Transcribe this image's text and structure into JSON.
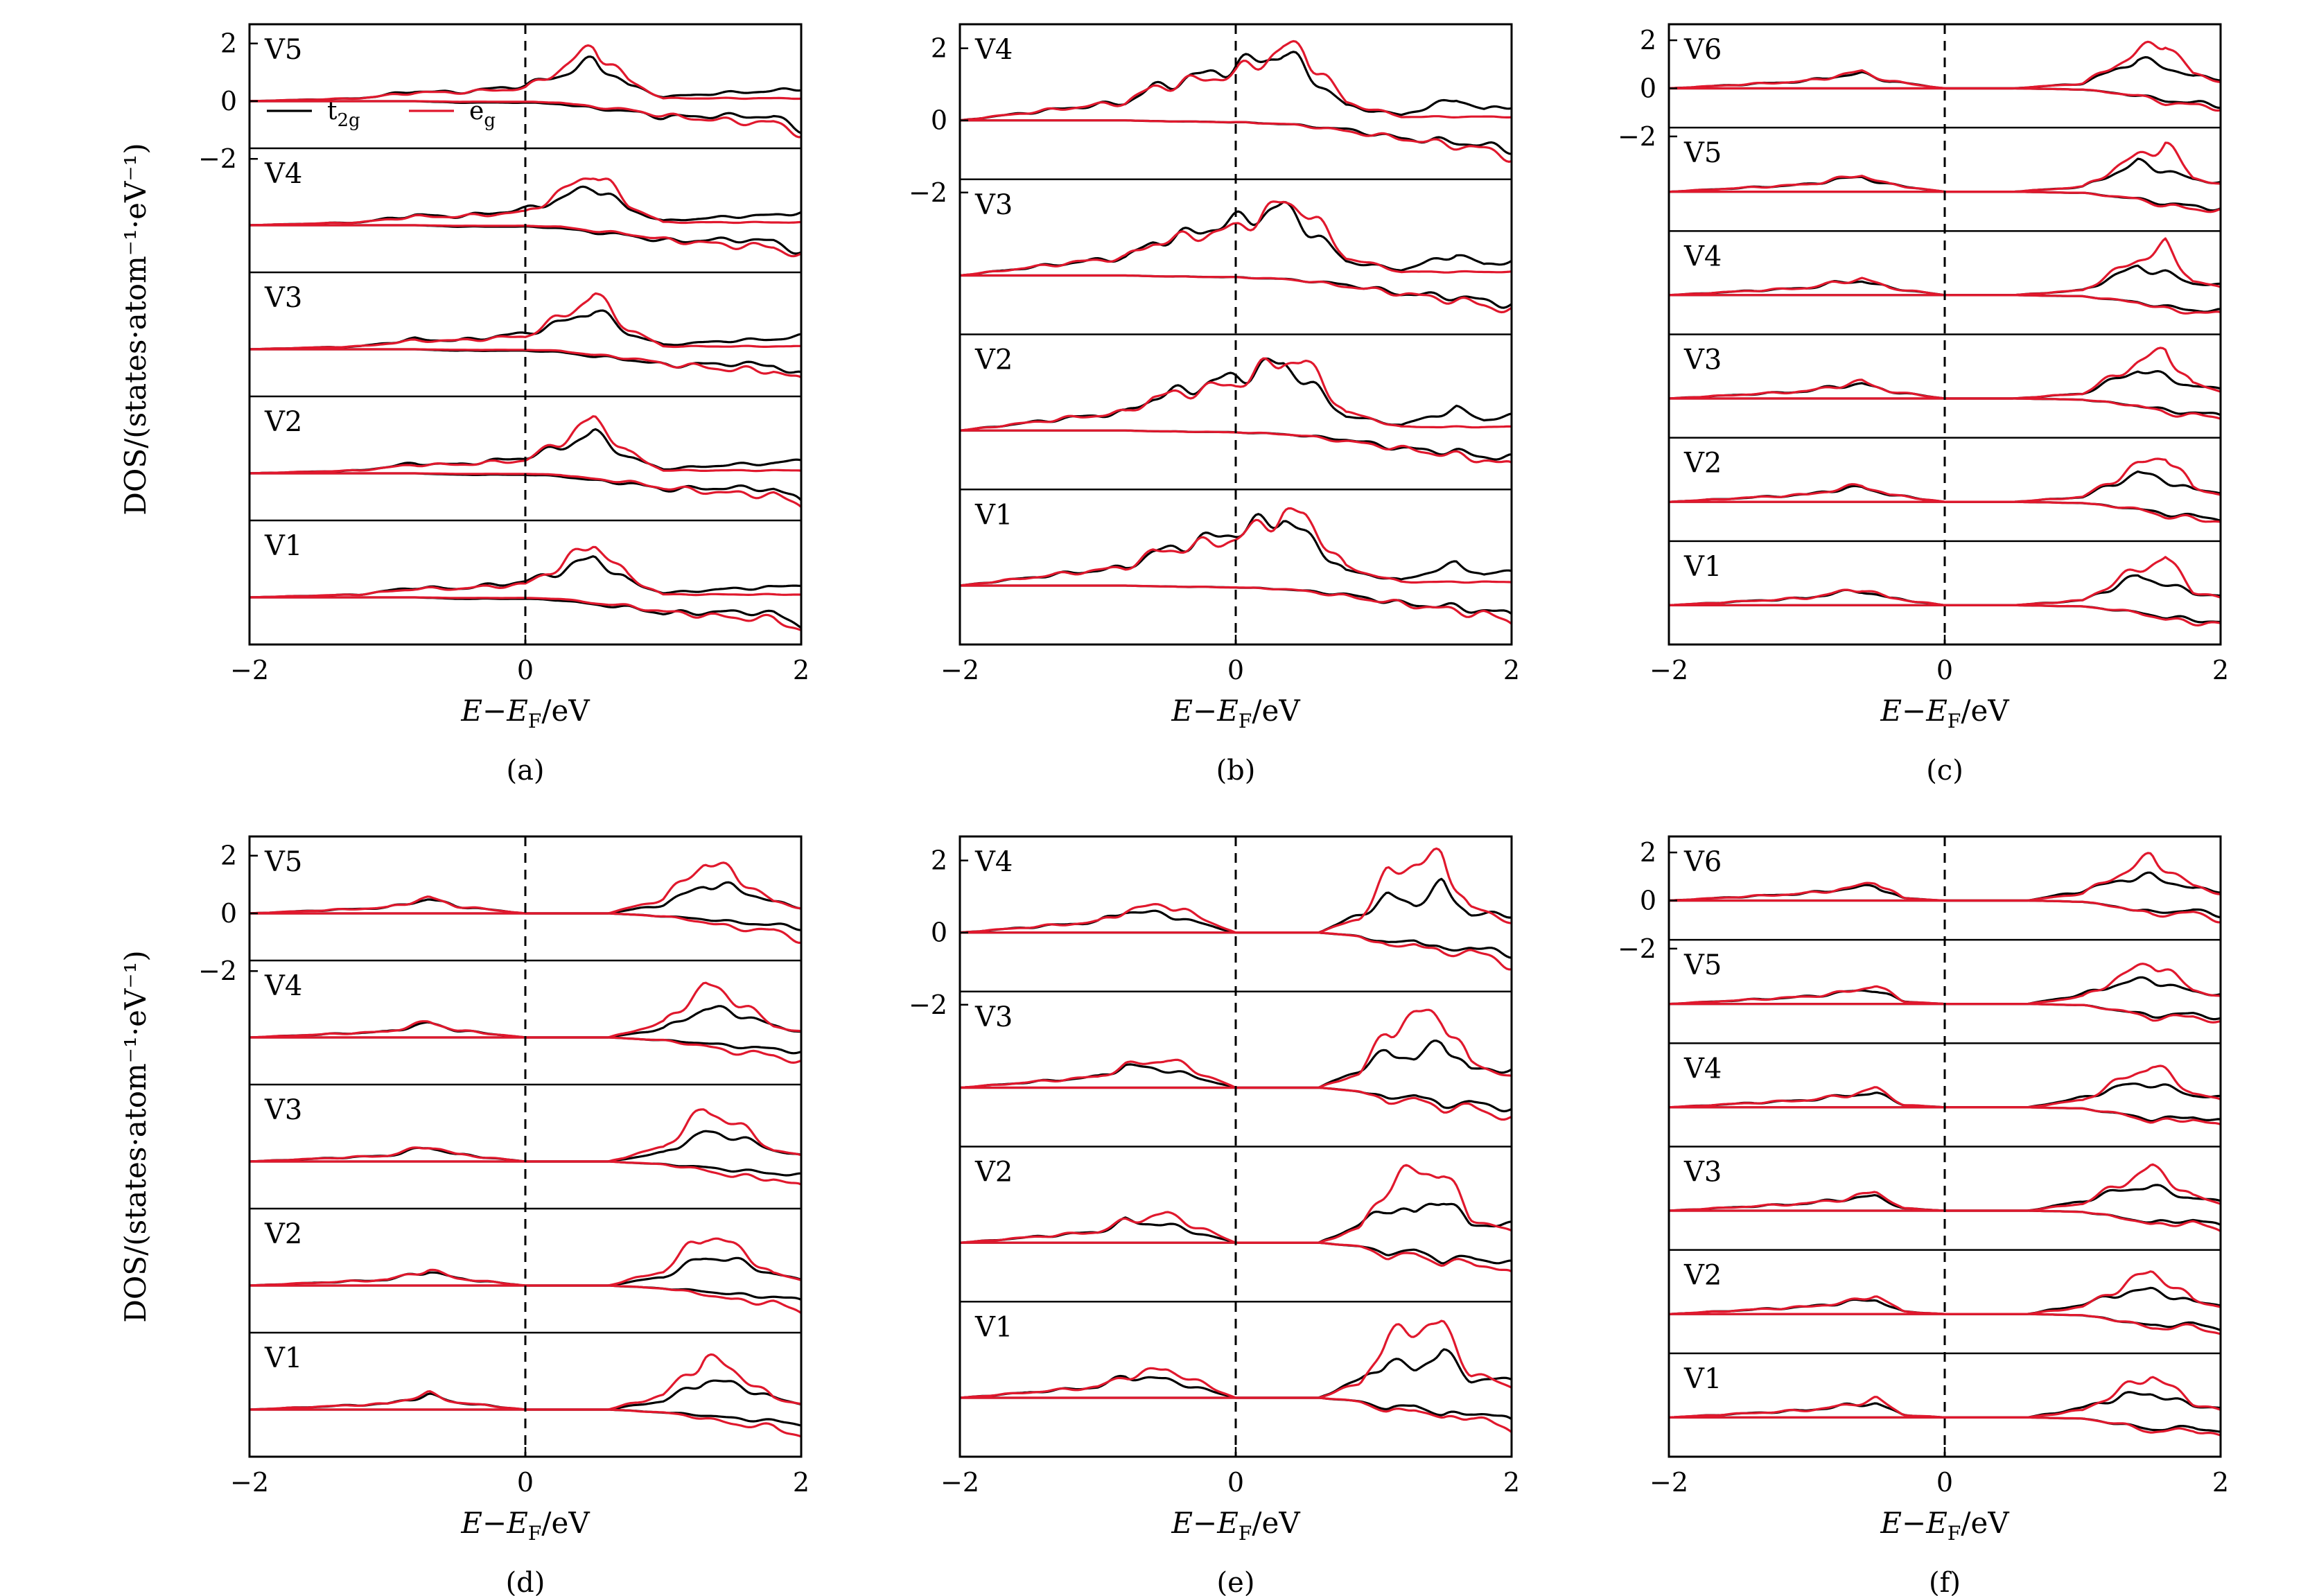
{
  "figure": {
    "y_axis_label": "DOS/(states·atom⁻¹·eV⁻¹)",
    "x_axis_label_parts": {
      "e": "E",
      "minus": "−",
      "ef": "E",
      "ef_sub": "F",
      "unit": "/eV"
    },
    "legend": {
      "t2g": {
        "main": "t",
        "sub": "2g",
        "color": "#000000"
      },
      "eg": {
        "main": "e",
        "sub": "g",
        "color": "#e0182d"
      }
    }
  },
  "chart_data": [
    {
      "panel": "a",
      "caption": "(a)",
      "type": "line",
      "xlim": [
        -2,
        2
      ],
      "xticks": [
        "−2",
        "0",
        "2"
      ],
      "yticks": [
        "2",
        "0",
        "−2"
      ],
      "atoms": [
        "V5",
        "V4",
        "V3",
        "V2",
        "V1"
      ],
      "fermi_level": 0,
      "series": [
        {
          "name": "t2g",
          "color": "#000000",
          "x": [
            -2,
            -1.2,
            -0.8,
            -0.5,
            0,
            0.25,
            0.5,
            0.75,
            1.0,
            1.5,
            1.8,
            2
          ],
          "upper": [
            0,
            0.1,
            0.35,
            0.3,
            0.55,
            0.9,
            1.4,
            0.55,
            0.15,
            0.3,
            0.35,
            0.45
          ],
          "lower": [
            0,
            0,
            0,
            -0.05,
            -0.05,
            -0.1,
            -0.25,
            -0.35,
            -0.55,
            -0.5,
            -0.55,
            -0.95
          ]
        },
        {
          "name": "eg",
          "color": "#e0182d",
          "x": [
            -2,
            -1.2,
            -0.8,
            -0.5,
            0,
            0.25,
            0.5,
            0.75,
            1.0,
            1.5,
            1.8,
            2
          ],
          "upper": [
            0,
            0.1,
            0.3,
            0.3,
            0.45,
            1.1,
            1.9,
            0.7,
            0.1,
            0.1,
            0.1,
            0.1
          ],
          "lower": [
            0,
            0,
            0,
            -0.02,
            -0.02,
            -0.05,
            -0.2,
            -0.3,
            -0.5,
            -0.7,
            -0.75,
            -1.1
          ]
        }
      ]
    },
    {
      "panel": "b",
      "caption": "(b)",
      "type": "line",
      "xlim": [
        -2,
        2
      ],
      "xticks": [
        "−2",
        "0",
        "2"
      ],
      "yticks": [
        "2",
        "0",
        "−2"
      ],
      "atoms": [
        "V4",
        "V3",
        "V2",
        "V1"
      ],
      "fermi_level": 0,
      "series": [
        {
          "name": "t2g",
          "color": "#000000",
          "x": [
            -2,
            -1.2,
            -0.8,
            -0.6,
            0,
            0.35,
            0.5,
            0.8,
            1.2,
            1.6,
            1.8,
            2
          ],
          "upper": [
            0,
            0.35,
            0.5,
            0.9,
            1.5,
            1.9,
            1.4,
            0.4,
            0.15,
            0.6,
            0.3,
            0.4
          ],
          "lower": [
            0,
            0,
            0,
            -0.02,
            -0.05,
            -0.1,
            -0.15,
            -0.25,
            -0.5,
            -0.6,
            -0.7,
            -0.8
          ]
        },
        {
          "name": "eg",
          "color": "#e0182d",
          "x": [
            -2,
            -1.2,
            -0.8,
            -0.6,
            0,
            0.35,
            0.5,
            0.8,
            1.2,
            1.6,
            1.8,
            2
          ],
          "upper": [
            0,
            0.35,
            0.5,
            0.9,
            1.3,
            2.0,
            1.9,
            0.5,
            0.1,
            0.1,
            0.1,
            0.1
          ],
          "lower": [
            0,
            0,
            0,
            -0.02,
            -0.05,
            -0.1,
            -0.15,
            -0.3,
            -0.5,
            -0.7,
            -0.8,
            -1.0
          ]
        }
      ]
    },
    {
      "panel": "c",
      "caption": "(c)",
      "type": "line",
      "xlim": [
        -2,
        2
      ],
      "xticks": [
        "−2",
        "0",
        "2"
      ],
      "yticks": [
        "2",
        "0",
        "−2"
      ],
      "atoms": [
        "V6",
        "V5",
        "V4",
        "V3",
        "V2",
        "V1"
      ],
      "fermi_level": 0,
      "series": [
        {
          "name": "t2g",
          "color": "#000000",
          "x": [
            -2,
            -1.0,
            -0.8,
            -0.6,
            -0.4,
            0,
            0.5,
            1.0,
            1.4,
            1.6,
            1.8,
            2
          ],
          "upper": [
            0,
            0.3,
            0.5,
            0.6,
            0.3,
            0,
            0,
            0.2,
            1.2,
            0.9,
            0.5,
            0.4
          ],
          "lower": [
            0,
            0,
            0,
            0,
            0,
            0,
            0,
            -0.05,
            -0.3,
            -0.5,
            -0.6,
            -0.7
          ]
        },
        {
          "name": "eg",
          "color": "#e0182d",
          "x": [
            -2,
            -1.0,
            -0.8,
            -0.6,
            -0.4,
            0,
            0.5,
            1.0,
            1.4,
            1.6,
            1.8,
            2
          ],
          "upper": [
            0,
            0.3,
            0.5,
            0.7,
            0.3,
            0,
            0,
            0.2,
            1.5,
            2.0,
            0.6,
            0.3
          ],
          "lower": [
            0,
            0,
            0,
            0,
            0,
            0,
            0,
            -0.05,
            -0.3,
            -0.6,
            -0.7,
            -0.8
          ]
        }
      ]
    },
    {
      "panel": "d",
      "caption": "(d)",
      "type": "line",
      "xlim": [
        -2,
        2
      ],
      "xticks": [
        "−2",
        "0",
        "2"
      ],
      "yticks": [
        "2",
        "0",
        "−2"
      ],
      "atoms": [
        "V5",
        "V4",
        "V3",
        "V2",
        "V1"
      ],
      "fermi_level": 0,
      "series": [
        {
          "name": "t2g",
          "color": "#000000",
          "x": [
            -2,
            -1.0,
            -0.7,
            -0.5,
            0,
            0.6,
            1.0,
            1.3,
            1.5,
            1.8,
            2
          ],
          "upper": [
            0,
            0.2,
            0.5,
            0.25,
            0,
            0,
            0.3,
            1.0,
            0.9,
            0.4,
            0.2
          ],
          "lower": [
            0,
            0,
            0,
            0,
            0,
            0,
            -0.1,
            -0.2,
            -0.3,
            -0.4,
            -0.5
          ]
        },
        {
          "name": "eg",
          "color": "#e0182d",
          "x": [
            -2,
            -1.0,
            -0.7,
            -0.5,
            0,
            0.6,
            1.0,
            1.3,
            1.5,
            1.8,
            2
          ],
          "upper": [
            0,
            0.2,
            0.55,
            0.25,
            0,
            0,
            0.5,
            1.8,
            1.4,
            0.4,
            0.2
          ],
          "lower": [
            0,
            0,
            0,
            0,
            0,
            0,
            -0.1,
            -0.3,
            -0.5,
            -0.6,
            -0.9
          ]
        }
      ]
    },
    {
      "panel": "e",
      "caption": "(e)",
      "type": "line",
      "xlim": [
        -2,
        2
      ],
      "xticks": [
        "−2",
        "0",
        "2"
      ],
      "yticks": [
        "2",
        "0",
        "−2"
      ],
      "atoms": [
        "V4",
        "V3",
        "V2",
        "V1"
      ],
      "fermi_level": 0,
      "series": [
        {
          "name": "t2g",
          "color": "#000000",
          "x": [
            -2,
            -1.0,
            -0.8,
            -0.5,
            0,
            0.6,
            0.9,
            1.1,
            1.3,
            1.5,
            1.7,
            2
          ],
          "upper": [
            0,
            0.3,
            0.6,
            0.5,
            0,
            0,
            0.5,
            1.0,
            0.8,
            1.3,
            0.5,
            0.5
          ],
          "lower": [
            0,
            0,
            0,
            0,
            0,
            0,
            -0.1,
            -0.3,
            -0.2,
            -0.5,
            -0.4,
            -0.6
          ]
        },
        {
          "name": "eg",
          "color": "#e0182d",
          "x": [
            -2,
            -1.0,
            -0.8,
            -0.5,
            0,
            0.6,
            0.9,
            1.1,
            1.3,
            1.5,
            1.7,
            2
          ],
          "upper": [
            0,
            0.3,
            0.6,
            0.8,
            0,
            0,
            0.4,
            1.6,
            2.0,
            2.0,
            0.7,
            0.3
          ],
          "lower": [
            0,
            0,
            0,
            0,
            0,
            0,
            -0.1,
            -0.4,
            -0.3,
            -0.6,
            -0.5,
            -0.9
          ]
        }
      ]
    },
    {
      "panel": "f",
      "caption": "(f)",
      "type": "line",
      "xlim": [
        -2,
        2
      ],
      "xticks": [
        "−2",
        "0",
        "2"
      ],
      "yticks": [
        "2",
        "0",
        "−2"
      ],
      "atoms": [
        "V6",
        "V5",
        "V4",
        "V3",
        "V2",
        "V1"
      ],
      "fermi_level": 0,
      "series": [
        {
          "name": "t2g",
          "color": "#000000",
          "x": [
            -2,
            -1.0,
            -0.7,
            -0.5,
            -0.3,
            0,
            0.6,
            1.0,
            1.3,
            1.5,
            1.8,
            2
          ],
          "upper": [
            0,
            0.3,
            0.5,
            0.6,
            0.1,
            0,
            0,
            0.4,
            0.9,
            1.0,
            0.5,
            0.4
          ],
          "lower": [
            0,
            0,
            0,
            0,
            0,
            0,
            0,
            -0.05,
            -0.3,
            -0.5,
            -0.4,
            -0.6
          ]
        },
        {
          "name": "eg",
          "color": "#e0182d",
          "x": [
            -2,
            -1.0,
            -0.7,
            -0.5,
            -0.3,
            0,
            0.6,
            1.0,
            1.3,
            1.5,
            1.8,
            2
          ],
          "upper": [
            0,
            0.3,
            0.5,
            0.8,
            0.1,
            0,
            0,
            0.3,
            1.2,
            1.8,
            0.6,
            0.3
          ],
          "lower": [
            0,
            0,
            0,
            0,
            0,
            0,
            0,
            -0.05,
            -0.3,
            -0.6,
            -0.5,
            -0.8
          ]
        }
      ]
    }
  ]
}
